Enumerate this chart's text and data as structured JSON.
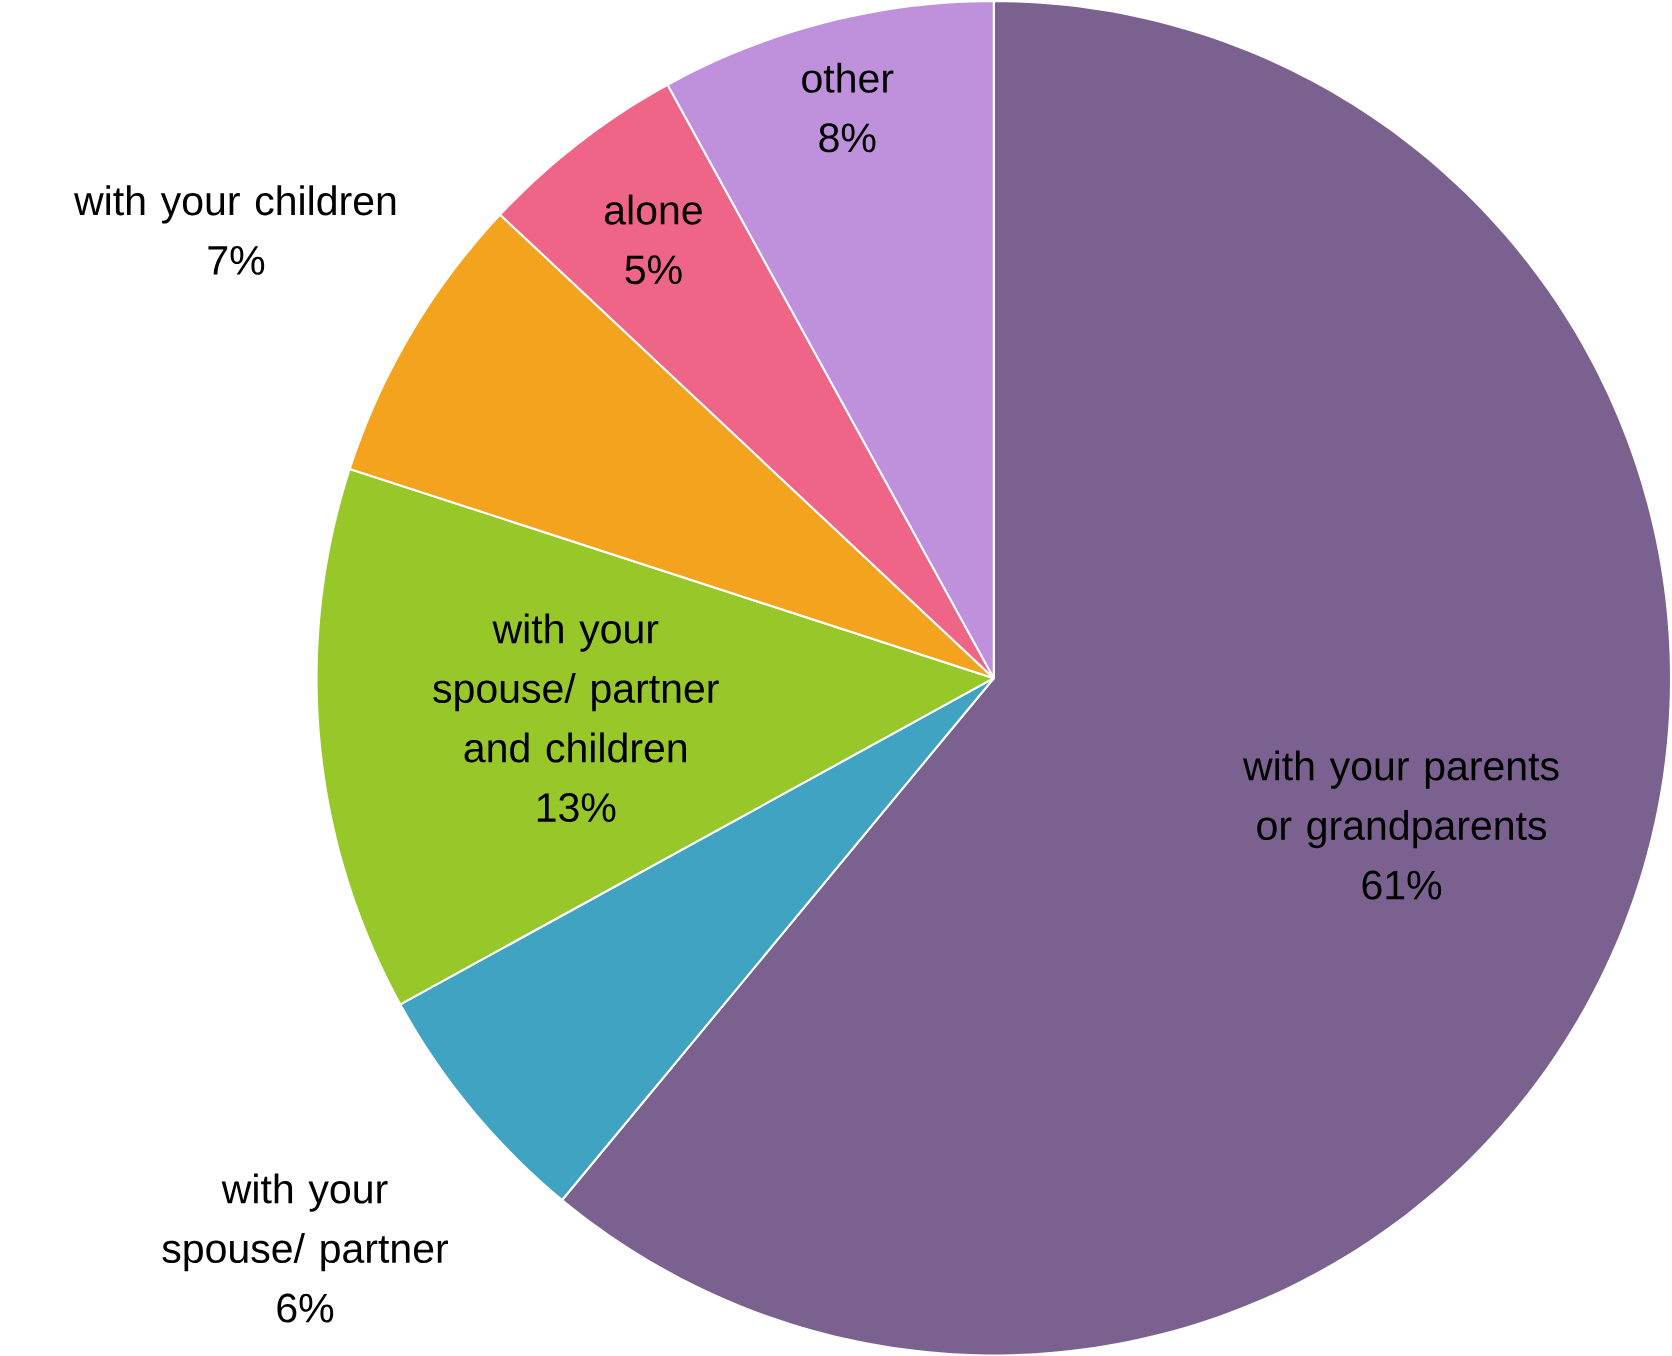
{
  "chart_data": {
    "type": "pie",
    "categories": [
      "with your parents or grandparents",
      "with your spouse/ partner",
      "with your spouse/ partner and children",
      "with your children",
      "alone",
      "other"
    ],
    "values": [
      61,
      6,
      13,
      7,
      5,
      8
    ],
    "value_labels": [
      "61%",
      "6%",
      "13%",
      "7%",
      "5%",
      "8%"
    ],
    "colors": [
      "#7b6190",
      "#41a3c2",
      "#98c72a",
      "#f3a31d",
      "#ef6587",
      "#bf90db"
    ]
  }
}
